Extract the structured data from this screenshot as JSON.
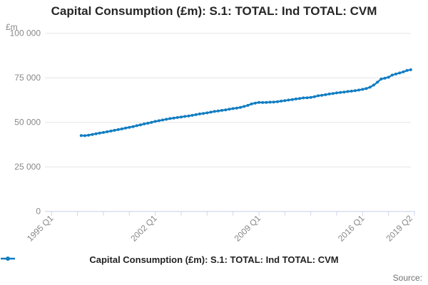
{
  "title": "Capital Consumption (£m): S.1: TOTAL: Ind TOTAL: CVM",
  "unit_label": "£m",
  "source_label": "Source:",
  "legend": {
    "label": "Capital Consumption (£m): S.1: TOTAL: Ind TOTAL: CVM"
  },
  "colors": {
    "series": "#117dc2",
    "grid": "#e6e6e6",
    "axis": "#ccd6eb",
    "tick_text": "#888888",
    "title_text": "#262626",
    "legend_text": "#222222",
    "source_text": "#717171"
  },
  "chart_data": {
    "type": "line",
    "title": "Capital Consumption (£m): S.1: TOTAL: Ind TOTAL: CVM",
    "ylabel": "£m",
    "ylim": [
      0,
      100000
    ],
    "grid": true,
    "legend_position": "bottom-center",
    "y_ticks": [
      0,
      25000,
      50000,
      75000,
      100000
    ],
    "y_tick_labels": [
      "0",
      "25 000",
      "50 000",
      "75 000",
      "100 000"
    ],
    "x_axis_start": "1995 Q1",
    "x_axis_total_quarters": 97,
    "minor_tick_step_quarters": 7,
    "x_tick_labels": [
      {
        "index": 0,
        "label": "1995 Q1"
      },
      {
        "index": 28,
        "label": "2002 Q1"
      },
      {
        "index": 56,
        "label": "2009 Q1"
      },
      {
        "index": 84,
        "label": "2016 Q1"
      },
      {
        "index": 97,
        "label": "2019 Q2"
      }
    ],
    "series": [
      {
        "name": "Capital Consumption (£m): S.1: TOTAL: Ind TOTAL: CVM",
        "start_quarter": "1997 Q1",
        "start_offset_quarters": 8,
        "frequency": "quarterly",
        "values": [
          42600,
          42500,
          42800,
          43200,
          43600,
          44000,
          44300,
          44700,
          45100,
          45500,
          45900,
          46300,
          46800,
          47200,
          47600,
          48100,
          48600,
          49100,
          49500,
          50000,
          50500,
          50900,
          51300,
          51700,
          52100,
          52400,
          52700,
          53000,
          53300,
          53600,
          53900,
          54300,
          54700,
          55000,
          55300,
          55700,
          56100,
          56400,
          56700,
          57000,
          57400,
          57700,
          58000,
          58400,
          58900,
          59500,
          60300,
          60800,
          61200,
          61100,
          61200,
          61300,
          61400,
          61600,
          61900,
          62200,
          62500,
          62800,
          63100,
          63400,
          63700,
          63800,
          64000,
          64400,
          64900,
          65200,
          65500,
          65900,
          66200,
          66500,
          66800,
          67000,
          67300,
          67500,
          67800,
          68100,
          68500,
          69000,
          69700,
          70900,
          72500,
          74300,
          74800,
          75300,
          76500,
          77100,
          77700,
          78300,
          79100,
          79500
        ]
      }
    ]
  }
}
